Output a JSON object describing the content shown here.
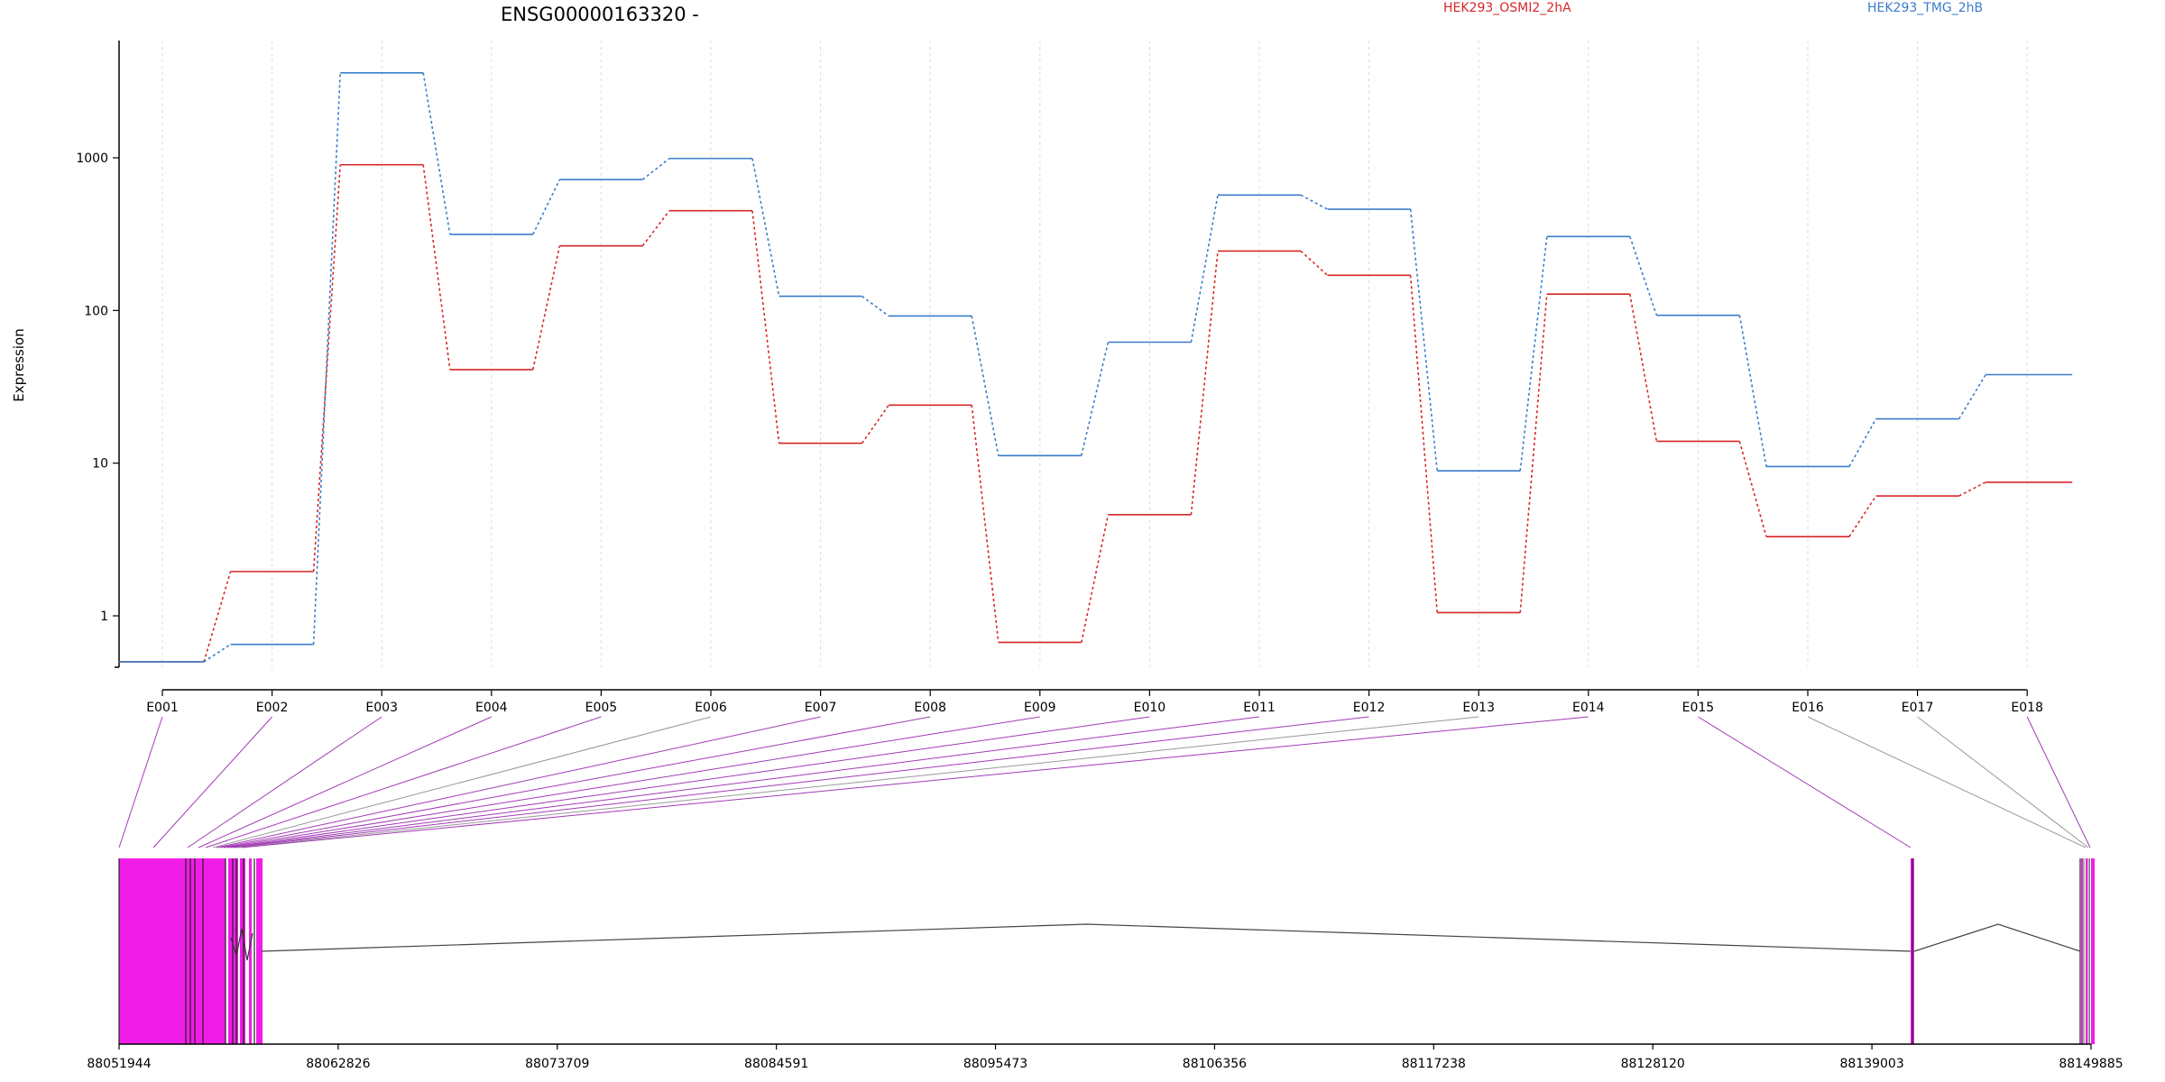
{
  "chart_data": {
    "type": "line",
    "title": "ENSG00000163320 -",
    "ylabel": "Expression",
    "xlabel": "",
    "yscale": "log",
    "ylim": [
      0.5,
      5000
    ],
    "yticks": [
      1,
      10,
      100,
      1000
    ],
    "grid": "vertical dashed",
    "legend_placement": "top",
    "categories": [
      "E001",
      "E002",
      "E003",
      "E004",
      "E005",
      "E006",
      "E007",
      "E008",
      "E009",
      "E010",
      "E011",
      "E012",
      "E013",
      "E014",
      "E015",
      "E016",
      "E017",
      "E018"
    ],
    "series": [
      {
        "name": "HEK293_OSMI2_2hA",
        "color": "#d62728",
        "values": [
          0.5,
          1.95,
          900,
          41,
          265,
          450,
          13.5,
          24,
          0.67,
          4.6,
          245,
          170,
          1.05,
          128,
          13.9,
          3.3,
          6.1,
          7.5
        ]
      },
      {
        "name": "HEK293_TMG_2hB",
        "color": "#3a7dc9",
        "values": [
          0.5,
          0.65,
          3600,
          315,
          720,
          990,
          124,
          92,
          11.2,
          62,
          570,
          460,
          8.9,
          305,
          93,
          9.5,
          19.5,
          38
        ]
      }
    ],
    "gene_model": {
      "start_label": "88051944",
      "end_label": "88149885",
      "axis_ticks": [
        "88051944",
        "88062826",
        "88073709",
        "88084591",
        "88095473",
        "88106356",
        "88117238",
        "88128120",
        "88139003",
        "88149885"
      ],
      "exon_color": "#f01de8",
      "connector_colors": [
        "#a33ab5",
        "#999999"
      ]
    }
  }
}
